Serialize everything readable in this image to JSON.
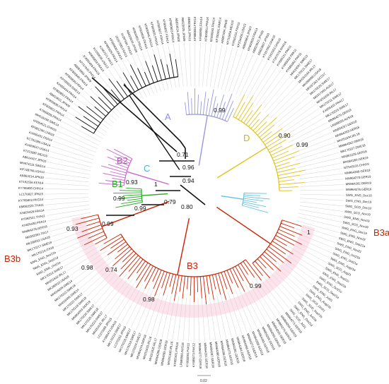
{
  "figure": {
    "clades": [
      {
        "id": "A",
        "label": "A",
        "color": "#9999dd",
        "leaf_count": 16,
        "label_color": "#8f8fe0"
      },
      {
        "id": "D",
        "label": "D",
        "color": "#e3c21a",
        "leaf_count": 31,
        "label_color": "#d8b400"
      },
      {
        "id": "C",
        "label": "C",
        "color": "#66c2e0",
        "leaf_count": 8,
        "label_color": "#4fb3d9"
      },
      {
        "id": "B2",
        "label": "B2",
        "color": "#cc66cc",
        "leaf_count": 12,
        "label_color": "#c050c0"
      },
      {
        "id": "B1",
        "label": "B1",
        "color": "#22aa22",
        "leaf_count": 8,
        "label_color": "#22aa22"
      },
      {
        "id": "B3a",
        "label": "B3a",
        "color": "#cc2200",
        "leaf_count": 17,
        "label_color": "#cc2200"
      },
      {
        "id": "B3",
        "label": "B3",
        "color": "#cc2200",
        "leaf_count": 48,
        "label_color": "#cc2200"
      },
      {
        "id": "B3b",
        "label": "B3b",
        "color": "#cc2200",
        "leaf_count": 8,
        "label_color": "#cc2200"
      }
    ],
    "support_values": [
      "0.71",
      "0.96",
      "0.99",
      "0.94",
      "0.80",
      "1",
      "0.79",
      "0.99",
      "0.93",
      "0.99",
      "0.90",
      "0.99",
      "0.93",
      "0.99",
      "0.98",
      "0.74",
      "0.98",
      "0.99",
      "1"
    ],
    "scale_bar_label": "0.02",
    "highlight_color": "#fde4ec",
    "branch_color": "#111111",
    "leaf_groups": [
      {
        "clade": "A",
        "names": [
          "AB823624.JPN08",
          "AB823625.JPN09",
          "AB823626.JPN10",
          "KF800834.FRA14",
          "KF800856.FRA14",
          "KF800861.FRA14",
          "KF800843.FRA14",
          "KP700931.SWE14",
          "AB887694.JPN09",
          "KF751656.MEX10",
          "KX655424.FRA15",
          "KP234455.USA13",
          "AB883954.JPN07",
          "KF800833.FRA14",
          "AB823622.JPN09",
          "AB823627.JPN10"
        ]
      },
      {
        "clade": "D",
        "names": [
          "KT257052.GHA15",
          "KT257053.GHA15",
          "KT257076.GHA16",
          "KY885101.PAK11",
          "KY885052.PAK11",
          "KY885062.PAK11",
          "MH016097.SWE13",
          "MK170221.SWE17",
          "MH251634.IRL17",
          "MK280009.USA18",
          "MF037263.SCO17",
          "MK170226.SWE17",
          "MG917263.AUS17",
          "MH251639.IRL17",
          "MK170211.SWE17",
          "KX655432.FRA17",
          "MK170215.SWE17",
          "MN964279.GER19",
          "LR699593.AUS18",
          "MN964267.GER18",
          "MN964263.GER18",
          "MH251634.IRL18",
          "MN964262.GER18",
          "MK170227.SWE18",
          "MN961228.GER18",
          "MN964260.GER19",
          "MT543133.CHN19",
          "MN964289.GER19",
          "MN964270.GER19",
          "MN964282.GER19",
          "MN964276.GER19"
        ]
      },
      {
        "clade": "C",
        "names": [
          "SWG_ENG_Dec19",
          "SWG_ENG_Dec19",
          "SWG_SCO_Dec19",
          "SWG_SCO_Nov19",
          "SWG_ENG_Nov19",
          "SWG_SCO_Nov19",
          "SWG_ENG_Dec19",
          "SWG_ENG_Nov19"
        ]
      },
      {
        "clade": "B3a",
        "names": [
          "SWG_ENG_Sep21a",
          "SWG_ENG_Nov21",
          "SWG_ENG_Oct21b",
          "SWG_ENG_Oct21a",
          "SWG_ENG_Aug21a",
          "SWG_SCO_Aug21",
          "SWG_ENG_Sep21c",
          "SWG_ENG_Sep21b",
          "SWG_ENG_Oct21c",
          "SWG_SCO_Sep21a",
          "SWG_ENG_Jul21",
          "SWG_ENG_Aug21b",
          "SWG_SCO_Oct21",
          "SWG_SCO_Sep21b",
          "SWG_ENG_Jul21b",
          "SWG_ENG_Oct21d",
          "SWG_SCO_Jul21"
        ]
      },
      {
        "clade": "B3",
        "names": [
          "MN964271.GER19",
          "MN964264.GER19",
          "MN964275.GER19",
          "MN964266.GER18",
          "MN964269.GER18",
          "MN964265.GER18",
          "MN964283.GER18",
          "MN964288.GER19",
          "MN964272.GER19",
          "MN964268.GER18",
          "MN964284.GER18",
          "MN964281.GER19",
          "MN964273.GER18",
          "MN964286.GER18",
          "MN964280.GER18",
          "MN964287.GER18",
          "MN964261.GER18",
          "MN964277.GER19",
          "KY885073.PAK12",
          "KY885081.PAK11",
          "LR699560.AUS18",
          "KX655431.FRA16",
          "MH251636.IRL16",
          "MN964285.GER18",
          "MN964289.GER18",
          "MH251635.IRL17",
          "MH251633.IRL16",
          "MN964274.GER18",
          "MK170224.SWE17",
          "MK170219.SWE17",
          "MK170216.SWE17",
          "LC270292.JPN15",
          "MK170219.SWE17",
          "KY985473.USA16",
          "LC270289.JPN15",
          "MH251631.IRL17",
          "MK170223.SWE17",
          "MK170225.SWE18",
          "MK170220.SWE17",
          "MN964263.GER19",
          "MK170218.SWE18",
          "MK170222.SWE17",
          "MH016095.SWE14",
          "MK170213.SWE18",
          "MH016099.SWE14",
          "MK280010.USA18",
          "MH251632.IRL17",
          "MK170212.SWE17"
        ]
      },
      {
        "clade": "B3b",
        "names": [
          "SWG_ENG_Oct21e",
          "SWG_ENG_Sep21d",
          "SWG_ENG_Nov21b",
          "MK170214.ITA18",
          "MK170217.SWE18",
          "MK280011.USA18",
          "MG932561.ITA17",
          "MN964278.GER18"
        ]
      },
      {
        "clade": "B1",
        "names": [
          "KX655430.FRA14",
          "KT992521.THA11",
          "KX655428.FRA14",
          "KM091523.THA11",
          "KY765802.HKG14",
          "LC176827.JPN15",
          "KY765800.CHN14",
          "KT192556.KEN14"
        ]
      },
      {
        "clade": "B2",
        "names": [
          "AB863214.JPN10",
          "KP748756.USA14",
          "MH674115.SWE14",
          "AB614427.JPN10",
          "KT221887.MEX10",
          "KU669047.USA14",
          "KC751380.USA14",
          "KX655431.FRA14",
          "KF981290.CHN15",
          "KR054521.CHN15",
          "MH016094.SWE14",
          "KT869005.FRA14"
        ]
      },
      {
        "clade": "other",
        "names": [
          "KF800822.FRA14",
          "KF800838.FRA14",
          "AB823621.JPN09",
          "KF800832.FRA14",
          "KX655424.FRA14",
          "KP700929.SWE14",
          "KF800839.FRA14",
          "KF800840.FRA14",
          "AB883955.JPN09",
          "KP757645.PHI14",
          "KX655426.FRA15",
          "KF800828.FRA14",
          "KU160634.USA13",
          "KJ467571.FIN13",
          "KF800829.FRA14",
          "KF800830.FRA14",
          "JX297585.FRA13",
          "JX297591.FRA14",
          "AB823620.JPN09",
          "KF800851.FRA14",
          "KF800836.FRA14",
          "KF800845.FRA14",
          "KF800831.FRA14",
          "KF800827.FRA14",
          "KF800837.FRA14",
          "KF800823.FRA14"
        ]
      }
    ]
  }
}
